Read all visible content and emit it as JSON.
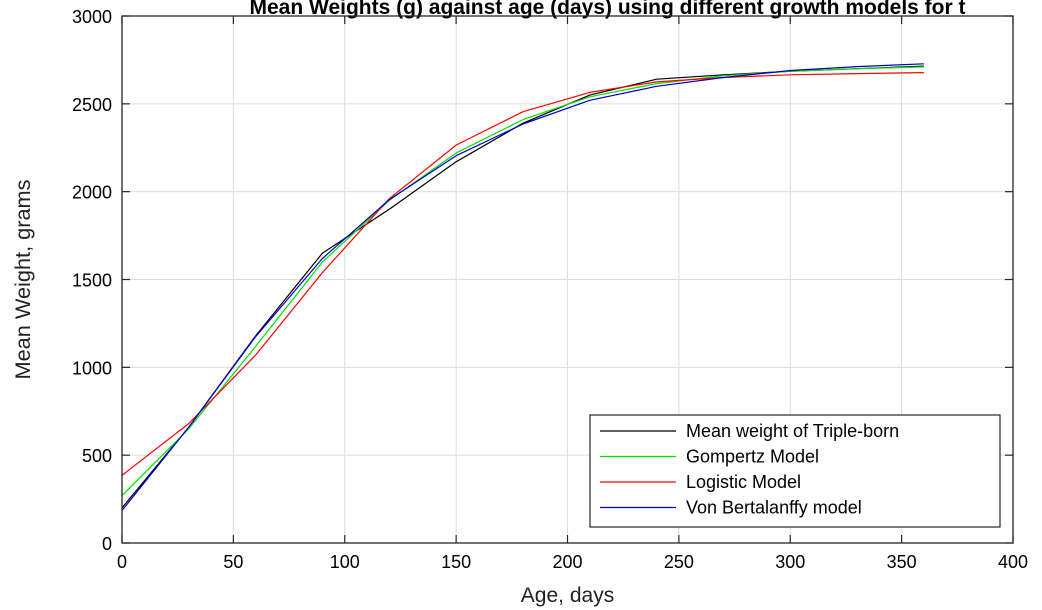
{
  "chart_data": {
    "type": "line",
    "title": "Mean Weights (g) against age (days) using different growth models for t",
    "xlabel": "Age, days",
    "ylabel": "Mean Weight, grams",
    "xlim": [
      0,
      400
    ],
    "ylim": [
      0,
      3000
    ],
    "xticks": [
      0,
      50,
      100,
      150,
      200,
      250,
      300,
      350,
      400
    ],
    "yticks": [
      0,
      500,
      1000,
      1500,
      2000,
      2500,
      3000
    ],
    "grid": true,
    "legend_position": "bottom-right",
    "x": [
      0,
      30,
      60,
      90,
      120,
      150,
      180,
      210,
      240,
      270,
      300,
      330,
      360
    ],
    "series": [
      {
        "name": "Mean weight of Triple-born",
        "color": "#000000",
        "values": [
          200,
          660,
          1180,
          1650,
          1900,
          2170,
          2390,
          2550,
          2640,
          2665,
          2685,
          2700,
          2715
        ]
      },
      {
        "name": "Gompertz Model",
        "color": "#00e000",
        "values": [
          270,
          650,
          1120,
          1600,
          1950,
          2220,
          2410,
          2540,
          2615,
          2660,
          2685,
          2700,
          2710
        ]
      },
      {
        "name": "Logistic Model",
        "color": "#ff0000",
        "values": [
          385,
          680,
          1070,
          1540,
          1960,
          2265,
          2455,
          2565,
          2625,
          2650,
          2665,
          2672,
          2678
        ]
      },
      {
        "name": "Von Bertalanffy model",
        "color": "#0000cc",
        "values": [
          185,
          660,
          1175,
          1620,
          1955,
          2205,
          2385,
          2520,
          2600,
          2650,
          2690,
          2712,
          2728
        ]
      }
    ]
  }
}
